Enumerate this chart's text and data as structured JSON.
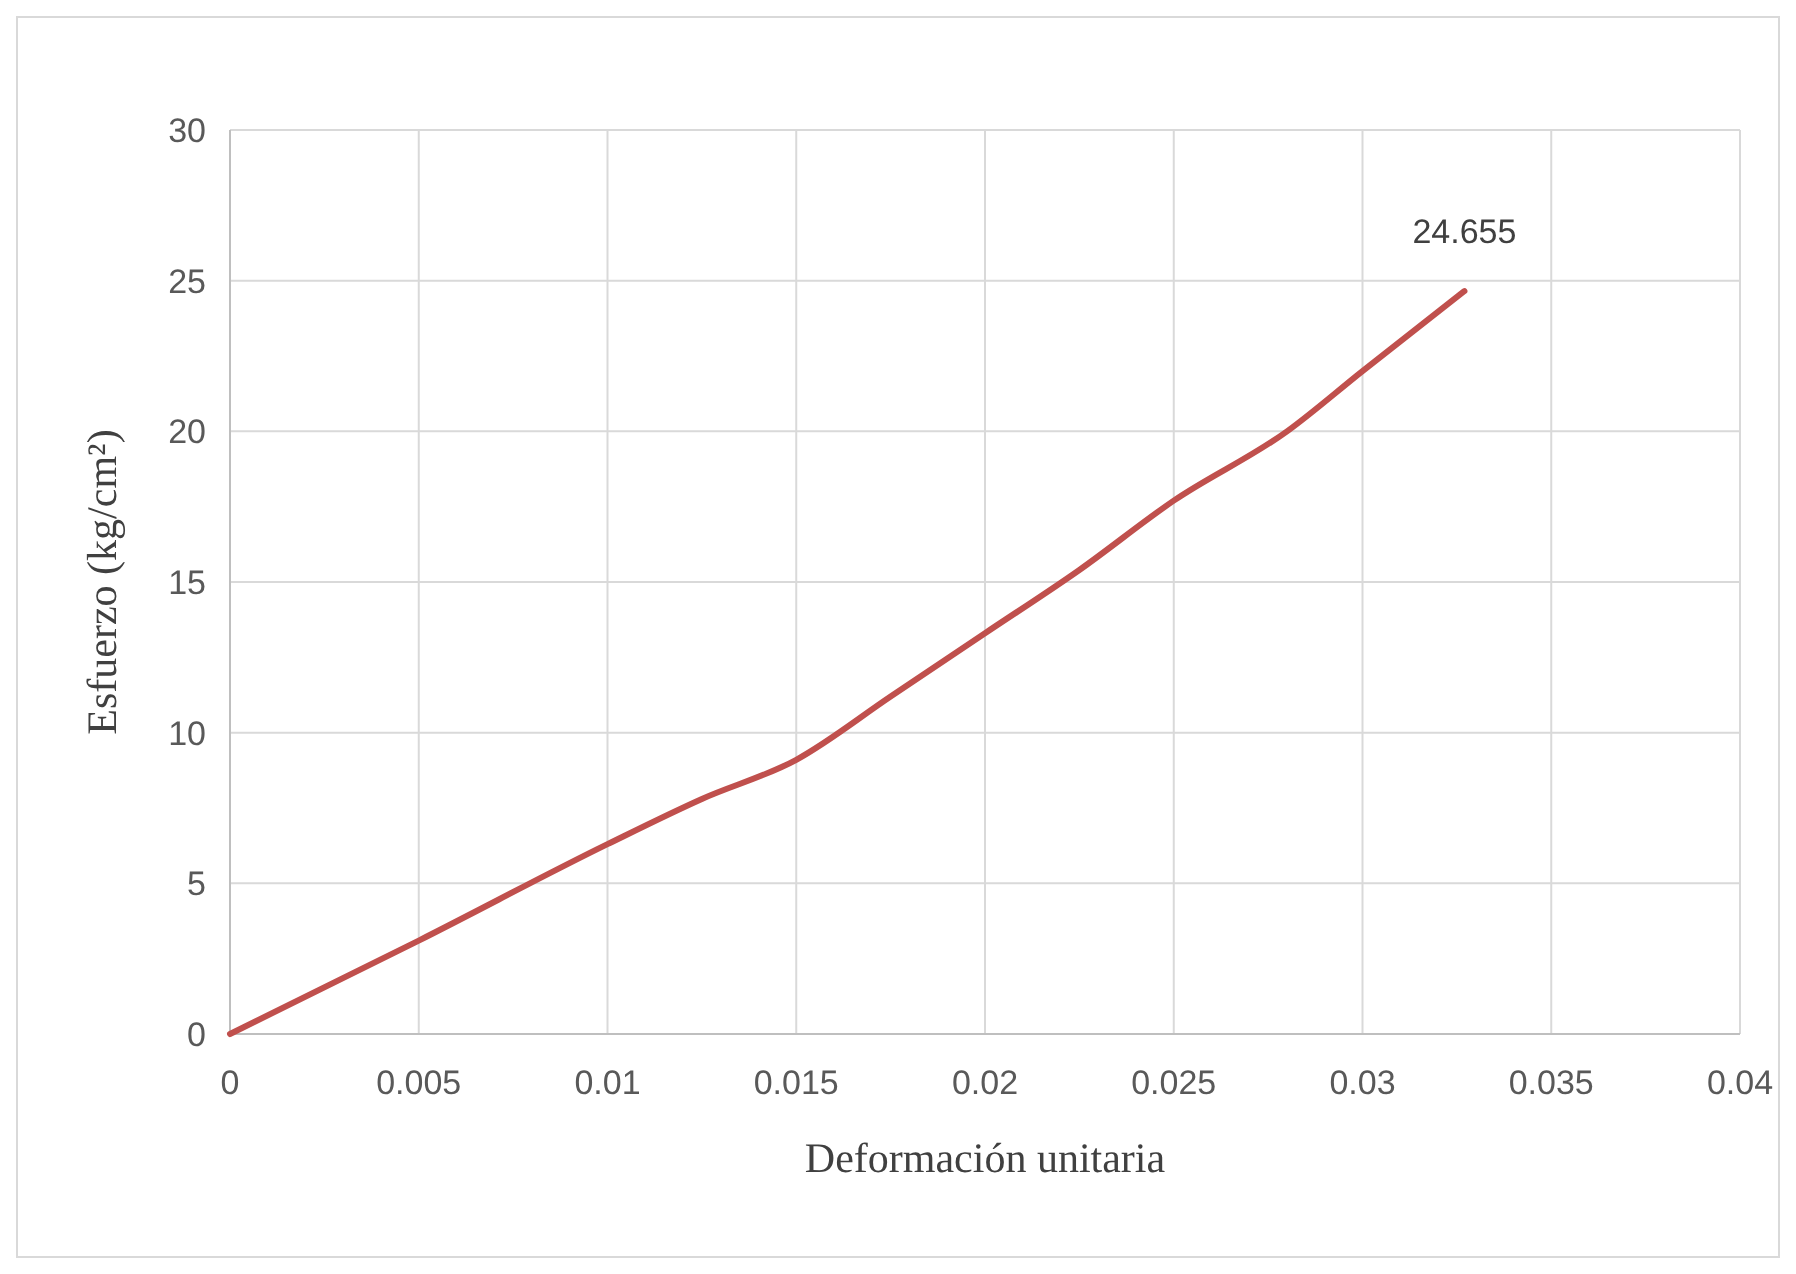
{
  "chart_data": {
    "type": "line",
    "xlabel": "Deformación unitaria",
    "ylabel": "Esfuerzo (kg/cm²)",
    "x": [
      0,
      0.005,
      0.01,
      0.0125,
      0.015,
      0.0175,
      0.02,
      0.0225,
      0.025,
      0.028,
      0.03,
      0.0327
    ],
    "series": [
      {
        "color": "#c0504d",
        "values": [
          0,
          3.1,
          6.3,
          7.8,
          9.1,
          11.2,
          13.3,
          15.4,
          17.7,
          20.0,
          22.0,
          24.655
        ]
      }
    ],
    "annotations": [
      {
        "text": "24.655",
        "x": 0.0327,
        "y": 24.655
      }
    ],
    "xlim": [
      0,
      0.04
    ],
    "xticks": [
      0,
      0.005,
      0.01,
      0.015,
      0.02,
      0.025,
      0.03,
      0.035,
      0.04
    ],
    "ylim": [
      0,
      30
    ],
    "yticks": [
      0,
      5,
      10,
      15,
      20,
      25,
      30
    ],
    "grid": true,
    "marker": "none",
    "line_style": "solid"
  }
}
